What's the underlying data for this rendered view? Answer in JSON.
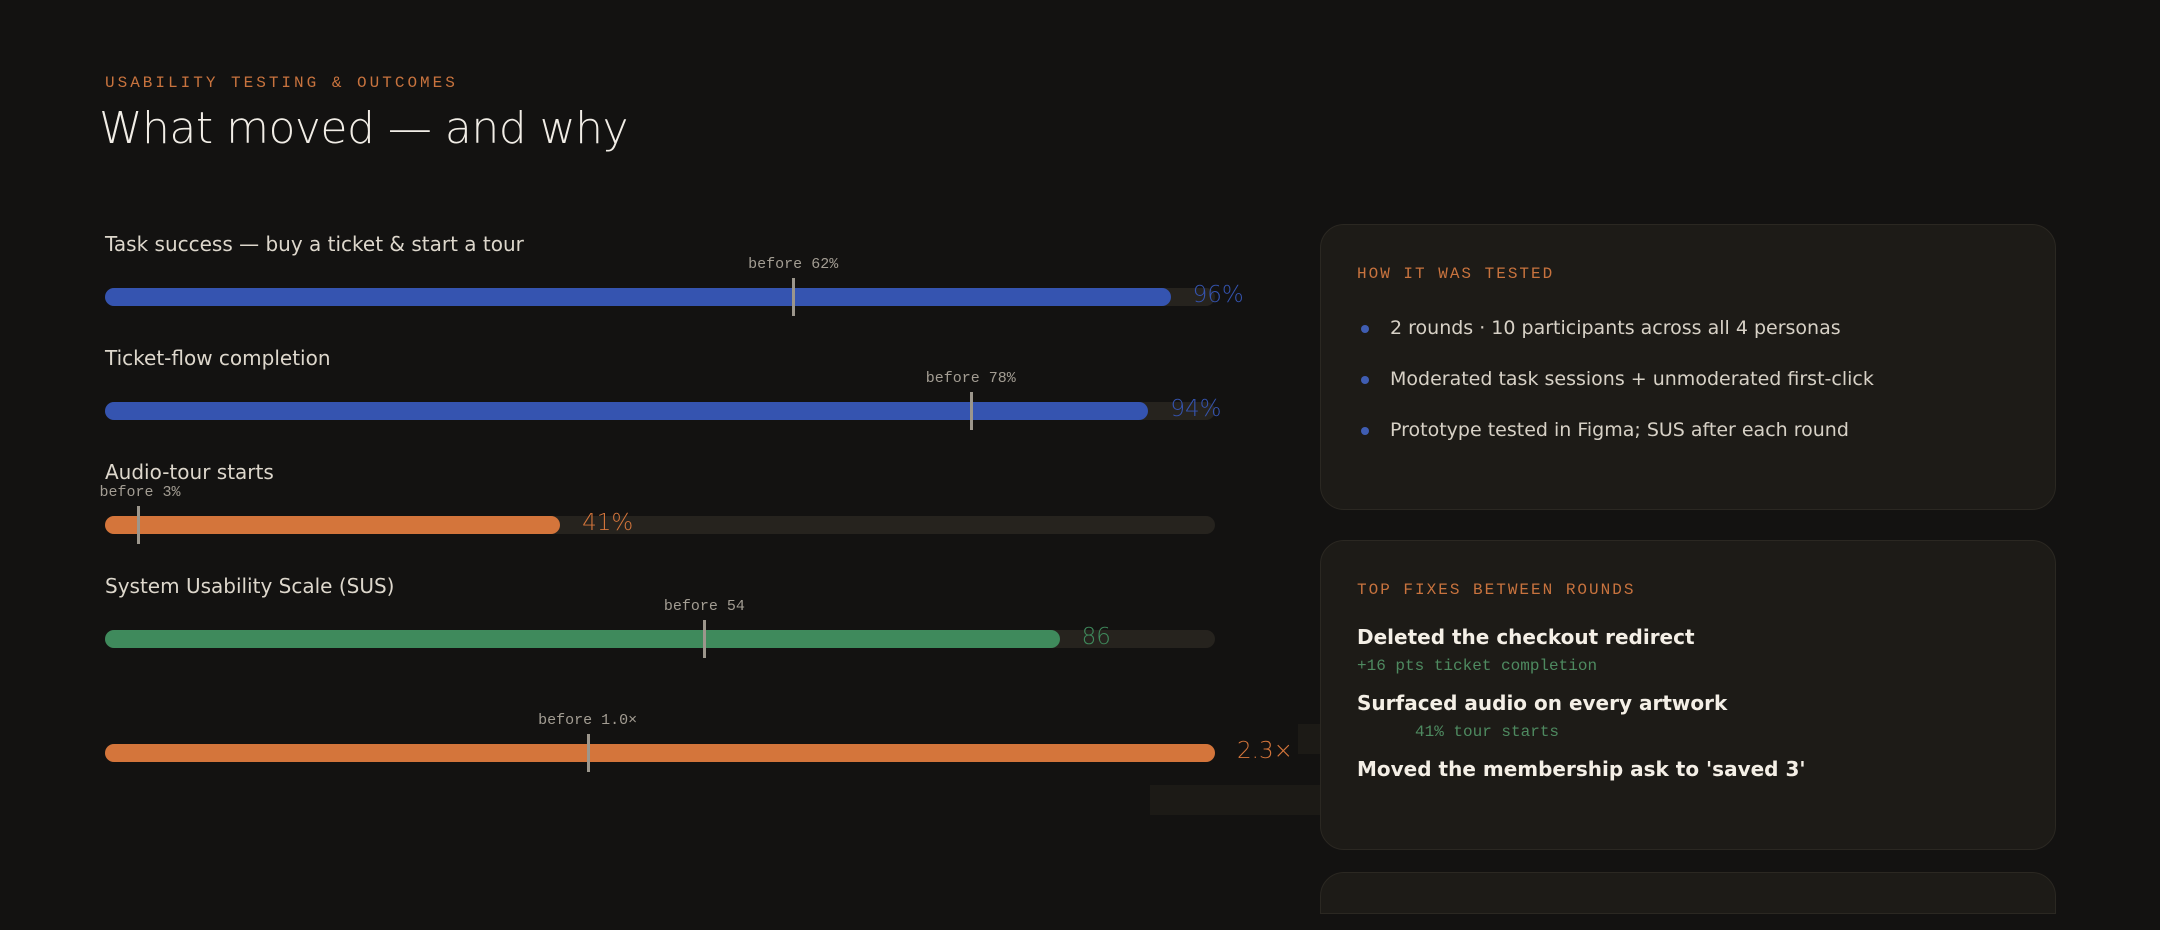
{
  "header": {
    "eyebrow": "USABILITY TESTING & OUTCOMES",
    "title": "What moved — and why"
  },
  "colors": {
    "background": "#131211",
    "blue": "#3554b0",
    "orange": "#d4753b",
    "green": "#3f8a5c",
    "track": "#26231e",
    "accent": "#c8733e"
  },
  "chart_data": {
    "type": "bar",
    "title": "",
    "categories": [
      "Task success — buy a ticket & start a tour",
      "Ticket-flow completion",
      "Audio-tour starts",
      "System Usability Scale (SUS)",
      ""
    ],
    "series": [
      {
        "values": [
          96,
          94,
          41,
          86,
          2.3
        ]
      }
    ],
    "value_labels": [
      "96%",
      "94%",
      "41%",
      "86",
      "2.3×"
    ],
    "before_values": [
      62,
      78,
      3,
      54,
      1.0
    ],
    "before_labels": [
      "before 62%",
      "before 78%",
      "before 3%",
      "before 54",
      "before 1.0×"
    ],
    "xlim": [
      [
        0,
        100
      ],
      [
        0,
        100
      ],
      [
        0,
        100
      ],
      [
        0,
        100
      ],
      [
        0,
        2.3
      ]
    ],
    "bar_colors": [
      "blue",
      "blue",
      "orange",
      "green",
      "orange"
    ],
    "grid": false,
    "legend": "none"
  },
  "tested_card": {
    "title": "HOW IT WAS TESTED",
    "bullets": [
      "2 rounds · 10 participants across all 4 personas",
      "Moderated task sessions + unmoderated first-click",
      "Prototype tested in Figma; SUS after each round"
    ]
  },
  "fixes_card": {
    "title": "TOP FIXES BETWEEN ROUNDS",
    "fixes": [
      {
        "name": "Deleted the checkout redirect",
        "impact": "+16 pts ticket completion"
      },
      {
        "name": "Surfaced audio on every artwork",
        "impact": "41% tour starts"
      },
      {
        "name": "Moved the membership ask to 'saved 3'",
        "impact": ""
      }
    ]
  }
}
